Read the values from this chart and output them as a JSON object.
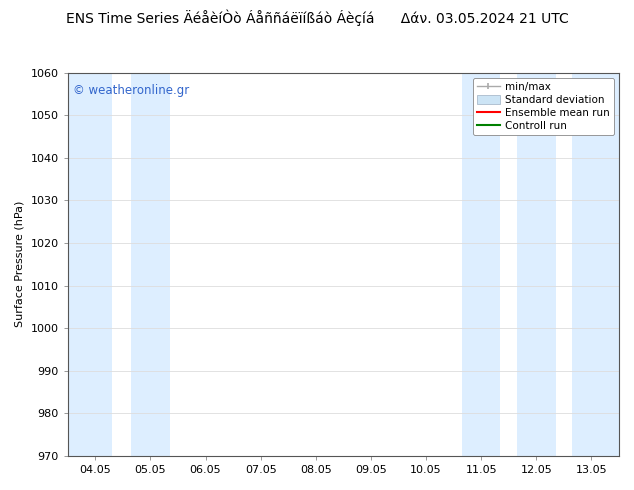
{
  "title_left": "ENS Time Series ÄéåèíÒò Áåññáëïíßáò Áèçíá",
  "title_right": "Δάν. 03.05.2024 21 UTC",
  "ylabel": "Surface Pressure (hPa)",
  "watermark": "© weatheronline.gr",
  "ylim": [
    970,
    1060
  ],
  "yticks": [
    970,
    980,
    990,
    1000,
    1010,
    1020,
    1030,
    1040,
    1050,
    1060
  ],
  "x_labels": [
    "04.05",
    "05.05",
    "06.05",
    "07.05",
    "08.05",
    "09.05",
    "10.05",
    "11.05",
    "12.05",
    "13.05"
  ],
  "x_positions": [
    0,
    1,
    2,
    3,
    4,
    5,
    6,
    7,
    8,
    9
  ],
  "shaded_color": "#ddeeff",
  "background_color": "#ffffff",
  "grid_color": "#dddddd",
  "title_fontsize": 10,
  "axis_fontsize": 8,
  "watermark_color": "#3366cc",
  "legend_minmax_color": "#aaaaaa",
  "legend_std_color": "#cce4f5",
  "legend_ens_color": "red",
  "legend_ctrl_color": "green"
}
